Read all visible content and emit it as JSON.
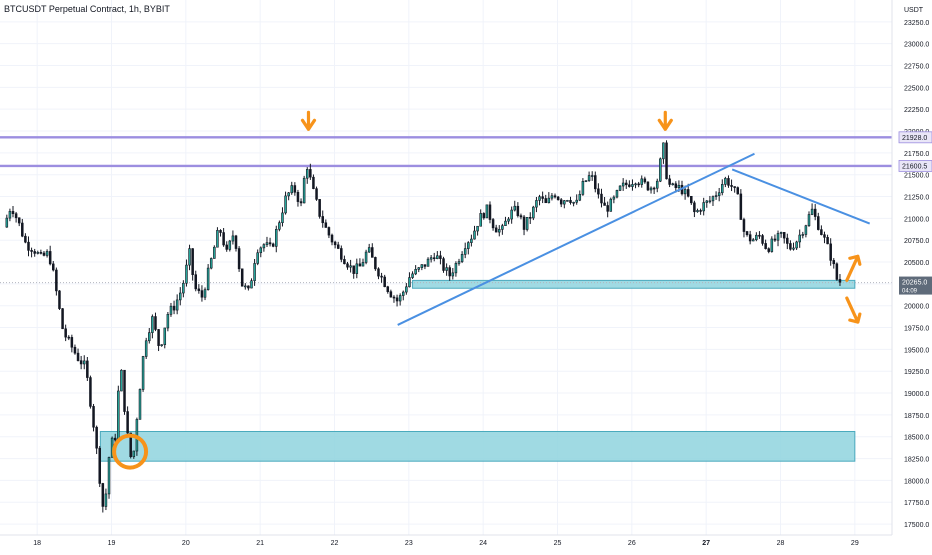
{
  "header": {
    "title": "BTCUSDT Perpetual Contract, 1h, BYBIT"
  },
  "chart_data": {
    "type": "candlestick",
    "title": "BTCUSDT Perpetual Contract, 1h, BYBIT",
    "y_unit": "USDT",
    "ylim": [
      17375,
      23500
    ],
    "xlim": [
      17.5,
      29.5
    ],
    "y_ticks": [
      17500,
      17750,
      18000,
      18250,
      18500,
      18750,
      19000,
      19250,
      19500,
      19750,
      20000,
      20250,
      20500,
      20750,
      21000,
      21250,
      21500,
      21750,
      22000,
      22250,
      22500,
      22750,
      23000,
      23250
    ],
    "y_tick_labels": [
      "17500.0",
      "17750.0",
      "18000.0",
      "18250.0",
      "18500.0",
      "18750.0",
      "19000.0",
      "19250.0",
      "19500.0",
      "19750.0",
      "20000.0",
      "20250.0",
      "20500.0",
      "20750.0",
      "21000.0",
      "21250.0",
      "21500.0",
      "21750.0",
      "22000.0",
      "22250.0",
      "22500.0",
      "22750.0",
      "23000.0",
      "23250.0"
    ],
    "x_ticks": [
      18,
      19,
      20,
      21,
      22,
      23,
      24,
      25,
      26,
      27,
      28,
      29
    ],
    "x_tick_labels": [
      "18",
      "19",
      "20",
      "21",
      "22",
      "23",
      "24",
      "25",
      "26",
      "27",
      "28",
      "29"
    ],
    "bold_x_tick": "27",
    "price_tags": [
      {
        "label": "21928.0",
        "value": 21928
      },
      {
        "label": "21600.5",
        "value": 21600.5
      },
      {
        "label": "20265.0",
        "value": 20265,
        "sub": "04:09",
        "dark": true
      }
    ],
    "current_price": 20265,
    "resistance_levels": [
      21928,
      21600.5
    ],
    "zones": [
      {
        "from": 20200,
        "to": 20290,
        "x_start": 23.05,
        "x_end": 29.0
      },
      {
        "from": 18220,
        "to": 18560,
        "x_start": 18.85,
        "x_end": 29.0
      }
    ],
    "trendlines": [
      {
        "x1": 22.85,
        "y1": 19780,
        "x2": 27.65,
        "y2": 21740
      },
      {
        "x1": 27.35,
        "y1": 21560,
        "x2": 29.2,
        "y2": 20940
      }
    ],
    "annotations": [
      {
        "type": "arrow-down",
        "x": 21.65,
        "y": 21928
      },
      {
        "type": "arrow-down",
        "x": 26.45,
        "y": 21928
      },
      {
        "type": "arrow-up",
        "x": 29.0,
        "y": 20520
      },
      {
        "type": "arrow-down",
        "x": 29.0,
        "y": 19950
      },
      {
        "type": "circle",
        "x": 19.25,
        "y": 18330
      }
    ],
    "price_path": [
      [
        17.55,
        20900
      ],
      [
        17.65,
        21150
      ],
      [
        17.75,
        20950
      ],
      [
        17.85,
        20700
      ],
      [
        17.95,
        20650
      ],
      [
        18.05,
        20550
      ],
      [
        18.15,
        20600
      ],
      [
        18.2,
        20450
      ],
      [
        18.35,
        19700
      ],
      [
        18.45,
        19550
      ],
      [
        18.55,
        19400
      ],
      [
        18.65,
        19300
      ],
      [
        18.75,
        18700
      ],
      [
        18.82,
        18200
      ],
      [
        18.88,
        17700
      ],
      [
        18.92,
        17800
      ],
      [
        18.98,
        18400
      ],
      [
        19.05,
        18500
      ],
      [
        19.12,
        19350
      ],
      [
        19.2,
        18600
      ],
      [
        19.28,
        18150
      ],
      [
        19.36,
        18900
      ],
      [
        19.45,
        19600
      ],
      [
        19.55,
        19850
      ],
      [
        19.65,
        19500
      ],
      [
        19.75,
        19900
      ],
      [
        19.85,
        20000
      ],
      [
        19.95,
        20200
      ],
      [
        20.05,
        20600
      ],
      [
        20.12,
        20200
      ],
      [
        20.22,
        20100
      ],
      [
        20.35,
        20550
      ],
      [
        20.45,
        20900
      ],
      [
        20.55,
        20600
      ],
      [
        20.65,
        20850
      ],
      [
        20.75,
        20250
      ],
      [
        20.85,
        20150
      ],
      [
        20.95,
        20650
      ],
      [
        21.05,
        20700
      ],
      [
        21.15,
        20650
      ],
      [
        21.25,
        20950
      ],
      [
        21.35,
        21250
      ],
      [
        21.45,
        21350
      ],
      [
        21.55,
        21150
      ],
      [
        21.62,
        21650
      ],
      [
        21.7,
        21350
      ],
      [
        21.8,
        21050
      ],
      [
        21.9,
        20850
      ],
      [
        22.0,
        20700
      ],
      [
        22.12,
        20550
      ],
      [
        22.25,
        20400
      ],
      [
        22.35,
        20450
      ],
      [
        22.45,
        20650
      ],
      [
        22.55,
        20450
      ],
      [
        22.65,
        20300
      ],
      [
        22.75,
        20150
      ],
      [
        22.85,
        20050
      ],
      [
        22.92,
        20150
      ],
      [
        23.02,
        20350
      ],
      [
        23.12,
        20400
      ],
      [
        23.25,
        20500
      ],
      [
        23.35,
        20600
      ],
      [
        23.45,
        20450
      ],
      [
        23.55,
        20350
      ],
      [
        23.65,
        20500
      ],
      [
        23.75,
        20700
      ],
      [
        23.85,
        20800
      ],
      [
        23.95,
        21000
      ],
      [
        24.05,
        21100
      ],
      [
        24.15,
        20900
      ],
      [
        24.25,
        20850
      ],
      [
        24.35,
        21050
      ],
      [
        24.45,
        21100
      ],
      [
        24.55,
        20900
      ],
      [
        24.65,
        21050
      ],
      [
        24.75,
        21250
      ],
      [
        24.85,
        21150
      ],
      [
        24.95,
        21300
      ],
      [
        25.05,
        21200
      ],
      [
        25.15,
        21250
      ],
      [
        25.25,
        21150
      ],
      [
        25.35,
        21400
      ],
      [
        25.45,
        21500
      ],
      [
        25.55,
        21250
      ],
      [
        25.65,
        21100
      ],
      [
        25.75,
        21200
      ],
      [
        25.85,
        21350
      ],
      [
        25.95,
        21400
      ],
      [
        26.05,
        21450
      ],
      [
        26.15,
        21400
      ],
      [
        26.25,
        21350
      ],
      [
        26.35,
        21450
      ],
      [
        26.42,
        21850
      ],
      [
        26.48,
        21400
      ],
      [
        26.55,
        21350
      ],
      [
        26.65,
        21350
      ],
      [
        26.75,
        21250
      ],
      [
        26.85,
        21050
      ],
      [
        26.95,
        21150
      ],
      [
        27.05,
        21200
      ],
      [
        27.15,
        21300
      ],
      [
        27.25,
        21450
      ],
      [
        27.32,
        21400
      ],
      [
        27.42,
        21250
      ],
      [
        27.52,
        20800
      ],
      [
        27.62,
        20750
      ],
      [
        27.72,
        20800
      ],
      [
        27.82,
        20650
      ],
      [
        27.92,
        20750
      ],
      [
        28.02,
        20800
      ],
      [
        28.12,
        20650
      ],
      [
        28.22,
        20750
      ],
      [
        28.32,
        20900
      ],
      [
        28.42,
        21100
      ],
      [
        28.52,
        20900
      ],
      [
        28.62,
        20700
      ],
      [
        28.7,
        20500
      ],
      [
        28.76,
        20300
      ],
      [
        28.82,
        20265
      ]
    ]
  }
}
